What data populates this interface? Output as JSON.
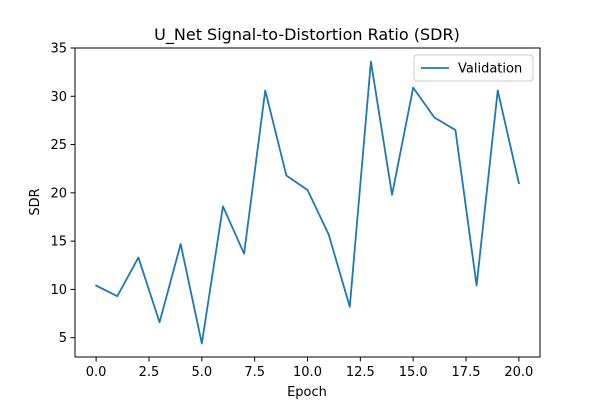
{
  "chart_data": {
    "type": "line",
    "title": "U_Net Signal-to-Distortion Ratio (SDR)",
    "xlabel": "Epoch",
    "ylabel": "SDR",
    "xlim": [
      -1.0,
      21.0
    ],
    "ylim": [
      3.0,
      35.0
    ],
    "xticks": [
      0,
      2.5,
      5,
      7.5,
      10,
      12.5,
      15,
      17.5,
      20
    ],
    "xtick_labels": [
      "0.0",
      "2.5",
      "5.0",
      "7.5",
      "10.0",
      "12.5",
      "15.0",
      "17.5",
      "20.0"
    ],
    "yticks": [
      5,
      10,
      15,
      20,
      25,
      30,
      35
    ],
    "ytick_labels": [
      "5",
      "10",
      "15",
      "20",
      "25",
      "30",
      "35"
    ],
    "grid": false,
    "legend_position": "upper right",
    "series": [
      {
        "name": "Validation",
        "color": "#1f77b4",
        "x": [
          0,
          1,
          2,
          3,
          4,
          5,
          6,
          7,
          8,
          9,
          10,
          11,
          12,
          13,
          14,
          15,
          16,
          17,
          18,
          19,
          20
        ],
        "y": [
          10.4,
          9.3,
          13.3,
          6.6,
          14.7,
          4.4,
          18.6,
          13.7,
          30.6,
          21.8,
          20.3,
          15.7,
          8.2,
          33.6,
          19.8,
          30.9,
          27.8,
          26.5,
          10.4,
          30.6,
          21.0
        ]
      }
    ]
  }
}
